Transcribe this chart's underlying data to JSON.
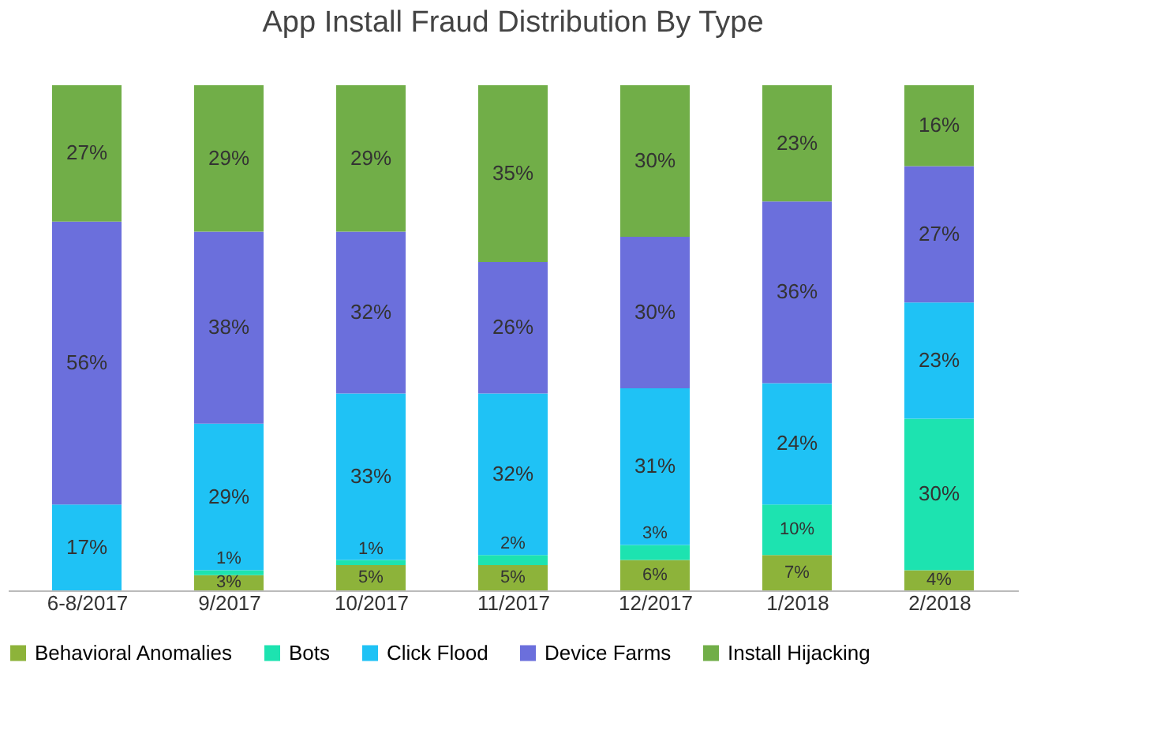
{
  "chart_data": {
    "type": "bar",
    "title": "App Install Fraud Distribution By Type",
    "stacked": true,
    "legend": "bottom",
    "tick_labels": "x",
    "ylim": [
      0,
      100
    ],
    "categories": [
      "6-8/2017",
      "9/2017",
      "10/2017",
      "11/2017",
      "12/2017",
      "1/2018",
      "2/2018"
    ],
    "series": [
      {
        "name": "Behavioral Anomalies",
        "color": "#8db33a",
        "values": [
          null,
          3,
          5,
          5,
          6,
          7,
          4
        ],
        "value_labels": [
          null,
          "3%",
          "5%",
          "5%",
          "6%",
          "7%",
          "4%"
        ]
      },
      {
        "name": "Bots",
        "color": "#1de3b0",
        "values": [
          null,
          1,
          1,
          2,
          3,
          10,
          30
        ],
        "value_labels": [
          null,
          "1%",
          "1%",
          "2%",
          "3%",
          "10%",
          "30%"
        ]
      },
      {
        "name": "Click Flood",
        "color": "#1fc2f5",
        "values": [
          17,
          29,
          33,
          32,
          31,
          24,
          23
        ],
        "value_labels": [
          "17%",
          "29%",
          "33%",
          "32%",
          "31%",
          "24%",
          "23%"
        ]
      },
      {
        "name": "Device Farms",
        "color": "#6b6fdc",
        "values": [
          56,
          38,
          32,
          26,
          30,
          36,
          27
        ],
        "value_labels": [
          "56%",
          "38%",
          "32%",
          "26%",
          "30%",
          "36%",
          "27%"
        ]
      },
      {
        "name": "Install Hijacking",
        "color": "#71ae48",
        "values": [
          27,
          29,
          29,
          35,
          30,
          23,
          16
        ],
        "value_labels": [
          "27%",
          "29%",
          "29%",
          "35%",
          "30%",
          "23%",
          "16%"
        ]
      }
    ]
  }
}
